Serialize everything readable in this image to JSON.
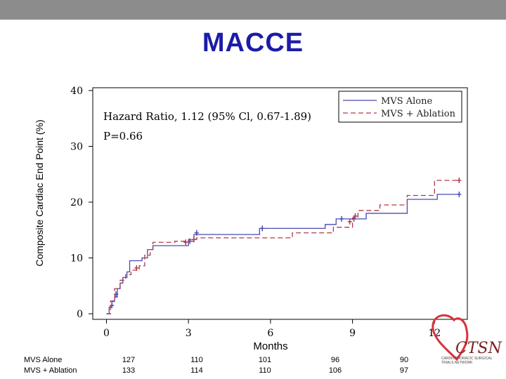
{
  "title": "MACCE",
  "chart_data": {
    "type": "line",
    "ylabel": "Composite Cardiac End Point (%)",
    "xlabel": "Months",
    "xlim": [
      -0.5,
      13.2
    ],
    "ylim": [
      -1,
      40.5
    ],
    "x_ticks": [
      0,
      3,
      6,
      9,
      12
    ],
    "y_ticks": [
      0,
      10,
      20,
      30,
      40
    ],
    "grid": false,
    "legend_position": "top-right",
    "annotations": [
      "Hazard Ratio, 1.12 (95% Cl, 0.67-1.89)",
      "P=0.66"
    ],
    "series": [
      {
        "name": "MVS Alone",
        "color": "#4a4ab0",
        "dash": "solid",
        "steps": [
          [
            0,
            0
          ],
          [
            0.1,
            1.2
          ],
          [
            0.2,
            2.2
          ],
          [
            0.3,
            3.0
          ],
          [
            0.4,
            4.5
          ],
          [
            0.5,
            5.5
          ],
          [
            0.6,
            6.5
          ],
          [
            0.75,
            7.5
          ],
          [
            0.85,
            9.5
          ],
          [
            1.3,
            10.0
          ],
          [
            1.5,
            11.5
          ],
          [
            1.7,
            12.2
          ],
          [
            3.0,
            13.0
          ],
          [
            3.2,
            14.2
          ],
          [
            5.6,
            15.3
          ],
          [
            8.0,
            16.0
          ],
          [
            8.4,
            17.0
          ],
          [
            9.5,
            18.0
          ],
          [
            11.0,
            20.5
          ],
          [
            12.1,
            21.4
          ],
          [
            12.9,
            21.4
          ]
        ],
        "censored": [
          [
            0.2,
            1.5
          ],
          [
            0.35,
            3.5
          ],
          [
            3.05,
            13.0
          ],
          [
            3.3,
            14.5
          ],
          [
            5.7,
            15.3
          ],
          [
            8.6,
            17.0
          ],
          [
            9.05,
            17.0
          ],
          [
            12.9,
            21.4
          ]
        ]
      },
      {
        "name": "MVS + Ablation",
        "color": "#b03a48",
        "dash": "dashed",
        "steps": [
          [
            0,
            0
          ],
          [
            0.15,
            2.3
          ],
          [
            0.3,
            4.5
          ],
          [
            0.5,
            6.0
          ],
          [
            0.7,
            7.0
          ],
          [
            0.9,
            7.8
          ],
          [
            1.2,
            8.6
          ],
          [
            1.4,
            10.5
          ],
          [
            1.6,
            11.5
          ],
          [
            1.7,
            12.8
          ],
          [
            2.5,
            13.0
          ],
          [
            3.0,
            13.3
          ],
          [
            3.3,
            13.6
          ],
          [
            6.8,
            14.5
          ],
          [
            8.3,
            15.5
          ],
          [
            9.0,
            17.2
          ],
          [
            9.2,
            18.5
          ],
          [
            10.0,
            19.5
          ],
          [
            11.0,
            21.2
          ],
          [
            12.0,
            23.9
          ],
          [
            12.9,
            23.9
          ]
        ],
        "censored": [
          [
            1.1,
            8.2
          ],
          [
            2.9,
            12.8
          ],
          [
            3.2,
            13.3
          ],
          [
            8.9,
            16.5
          ],
          [
            9.1,
            17.5
          ],
          [
            12.9,
            23.9
          ]
        ]
      }
    ]
  },
  "risk_table": {
    "rows": [
      {
        "label": "MVS Alone",
        "values": [
          "127",
          "110",
          "101",
          "96",
          "90"
        ]
      },
      {
        "label": "MVS + Ablation",
        "values": [
          "133",
          "114",
          "110",
          "106",
          "97"
        ]
      }
    ]
  },
  "logo": {
    "name": "CTSN",
    "subtitle": "CARDIOTHORACIC SURGICAL TRIALS NETWORK"
  }
}
